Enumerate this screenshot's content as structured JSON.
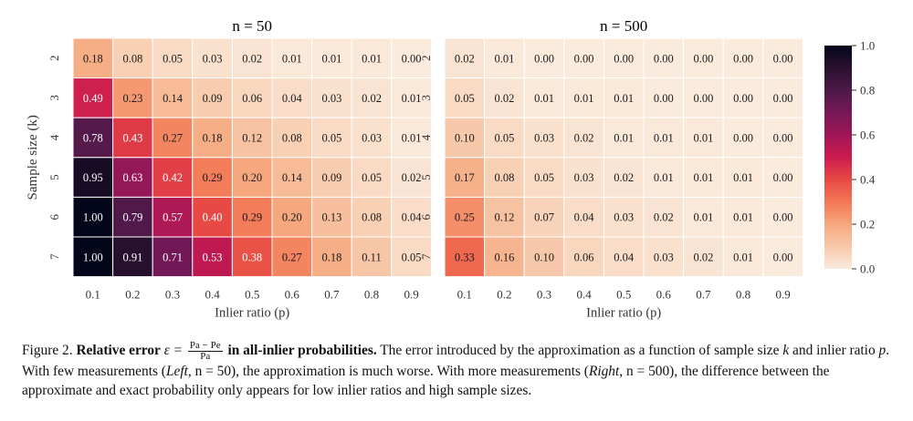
{
  "chart_data": [
    {
      "type": "heatmap",
      "title": "n = 50",
      "xlabel": "Inlier ratio (p)",
      "ylabel": "Sample size (k)",
      "x": [
        "0.1",
        "0.2",
        "0.3",
        "0.4",
        "0.5",
        "0.6",
        "0.7",
        "0.8",
        "0.9"
      ],
      "y": [
        "2",
        "3",
        "4",
        "5",
        "6",
        "7"
      ],
      "values": [
        [
          0.18,
          0.08,
          0.05,
          0.03,
          0.02,
          0.01,
          0.01,
          0.01,
          0.0
        ],
        [
          0.49,
          0.23,
          0.14,
          0.09,
          0.06,
          0.04,
          0.03,
          0.02,
          0.01
        ],
        [
          0.78,
          0.43,
          0.27,
          0.18,
          0.12,
          0.08,
          0.05,
          0.03,
          0.01
        ],
        [
          0.95,
          0.63,
          0.42,
          0.29,
          0.2,
          0.14,
          0.09,
          0.05,
          0.02
        ],
        [
          1.0,
          0.79,
          0.57,
          0.4,
          0.29,
          0.2,
          0.13,
          0.08,
          0.04
        ],
        [
          1.0,
          0.91,
          0.71,
          0.53,
          0.38,
          0.27,
          0.18,
          0.11,
          0.05
        ]
      ],
      "value_labels": [
        [
          "0.18",
          "0.08",
          "0.05",
          "0.03",
          "0.02",
          "0.01",
          "0.01",
          "0.01",
          "0.00"
        ],
        [
          "0.49",
          "0.23",
          "0.14",
          "0.09",
          "0.06",
          "0.04",
          "0.03",
          "0.02",
          "0.01"
        ],
        [
          "0.78",
          "0.43",
          "0.27",
          "0.18",
          "0.12",
          "0.08",
          "0.05",
          "0.03",
          "0.01"
        ],
        [
          "0.95",
          "0.63",
          "0.42",
          "0.29",
          "0.20",
          "0.14",
          "0.09",
          "0.05",
          "0.02"
        ],
        [
          "1.00",
          "0.79",
          "0.57",
          "0.40",
          "0.29",
          "0.20",
          "0.13",
          "0.08",
          "0.04"
        ],
        [
          "1.00",
          "0.91",
          "0.71",
          "0.53",
          "0.38",
          "0.27",
          "0.18",
          "0.11",
          "0.05"
        ]
      ]
    },
    {
      "type": "heatmap",
      "title": "n = 500",
      "xlabel": "Inlier ratio (p)",
      "ylabel": "",
      "x": [
        "0.1",
        "0.2",
        "0.3",
        "0.4",
        "0.5",
        "0.6",
        "0.7",
        "0.8",
        "0.9"
      ],
      "y": [
        "2",
        "3",
        "4",
        "5",
        "6",
        "7"
      ],
      "values": [
        [
          0.02,
          0.01,
          0.0,
          0.0,
          0.0,
          0.0,
          0.0,
          0.0,
          0.0
        ],
        [
          0.05,
          0.02,
          0.01,
          0.01,
          0.01,
          0.0,
          0.0,
          0.0,
          0.0
        ],
        [
          0.1,
          0.05,
          0.03,
          0.02,
          0.01,
          0.01,
          0.01,
          0.0,
          0.0
        ],
        [
          0.17,
          0.08,
          0.05,
          0.03,
          0.02,
          0.01,
          0.01,
          0.01,
          0.0
        ],
        [
          0.25,
          0.12,
          0.07,
          0.04,
          0.03,
          0.02,
          0.01,
          0.01,
          0.0
        ],
        [
          0.33,
          0.16,
          0.1,
          0.06,
          0.04,
          0.03,
          0.02,
          0.01,
          0.0
        ]
      ],
      "value_labels": [
        [
          "0.02",
          "0.01",
          "0.00",
          "0.00",
          "0.00",
          "0.00",
          "0.00",
          "0.00",
          "0.00"
        ],
        [
          "0.05",
          "0.02",
          "0.01",
          "0.01",
          "0.01",
          "0.00",
          "0.00",
          "0.00",
          "0.00"
        ],
        [
          "0.10",
          "0.05",
          "0.03",
          "0.02",
          "0.01",
          "0.01",
          "0.01",
          "0.00",
          "0.00"
        ],
        [
          "0.17",
          "0.08",
          "0.05",
          "0.03",
          "0.02",
          "0.01",
          "0.01",
          "0.01",
          "0.00"
        ],
        [
          "0.25",
          "0.12",
          "0.07",
          "0.04",
          "0.03",
          "0.02",
          "0.01",
          "0.01",
          "0.00"
        ],
        [
          "0.33",
          "0.16",
          "0.10",
          "0.06",
          "0.04",
          "0.03",
          "0.02",
          "0.01",
          "0.00"
        ]
      ]
    }
  ],
  "colorbar": {
    "ticks": [
      "0.0",
      "0.2",
      "0.4",
      "0.6",
      "0.8",
      "1.0"
    ],
    "range": [
      0,
      1
    ],
    "colormap": "rocket_r"
  },
  "caption": {
    "label": "Figure 2.",
    "bold_title_pre": "Relative error",
    "eq_lhs": "ε =",
    "frac_num": "Pa − Pe",
    "frac_den": "Pa",
    "bold_title_post": "in all-inlier probabilities.",
    "s1": "The error introduced by the approximation as a function of sample size",
    "var_k": "k",
    "s2": "and inlier ratio",
    "var_p": "p",
    "s3": ". With few measurements (",
    "left": "Left",
    "n50": ", n = 50), the approximation is much worse. With more measurements (",
    "right": "Right",
    "n500": ", n = 500), the difference between the approximate and exact probability only appears for low inlier ratios and high sample sizes."
  }
}
